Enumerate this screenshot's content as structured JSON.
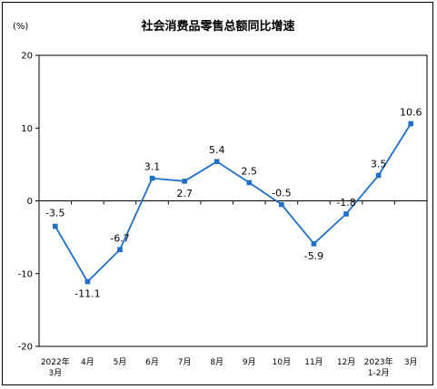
{
  "chart_data": {
    "type": "line",
    "title": "社会消费品零售总额同比增速",
    "unit": "(%)",
    "categories": [
      [
        "2022年",
        "3月"
      ],
      [
        "4月"
      ],
      [
        "5月"
      ],
      [
        "6月"
      ],
      [
        "7月"
      ],
      [
        "8月"
      ],
      [
        "9月"
      ],
      [
        "10月"
      ],
      [
        "11月"
      ],
      [
        "12月"
      ],
      [
        "2023年",
        "1-2月"
      ],
      [
        "3月"
      ]
    ],
    "values": [
      -3.5,
      -11.1,
      -6.7,
      3.1,
      2.7,
      5.4,
      2.5,
      -0.5,
      -5.9,
      -1.8,
      3.5,
      10.6
    ],
    "data_labels": [
      "-3.5",
      "-11.1",
      "-6.7",
      "3.1",
      "2.7",
      "5.4",
      "2.5",
      "-0.5",
      "-5.9",
      "-1.8",
      "3.5",
      "10.6"
    ],
    "ylim": [
      -20,
      20
    ],
    "yticks": [
      -20,
      -10,
      0,
      10,
      20
    ],
    "ytick_labels": [
      "-20",
      "-10",
      "0",
      "10",
      "20"
    ],
    "grid": false,
    "legend": "none",
    "line_color": "#1F6FC8",
    "marker_color": "#1F6FC8",
    "axis_color": "#000000"
  }
}
